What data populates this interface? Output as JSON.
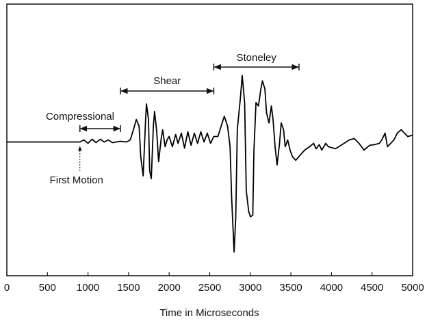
{
  "chart_data": {
    "type": "line",
    "xlabel": "Time in Microseconds",
    "xlim": [
      0,
      5000
    ],
    "xticks": [
      0,
      500,
      1000,
      1500,
      2000,
      2500,
      3000,
      3500,
      4000,
      4500,
      5000
    ],
    "ylim": [
      -200,
      200
    ],
    "color": "#000000",
    "x": [
      0,
      900,
      950,
      1000,
      1050,
      1100,
      1150,
      1200,
      1250,
      1300,
      1400,
      1475,
      1520,
      1560,
      1595,
      1630,
      1650,
      1680,
      1710,
      1720,
      1745,
      1760,
      1780,
      1805,
      1820,
      1845,
      1870,
      1900,
      1920,
      1950,
      1975,
      2000,
      2040,
      2080,
      2110,
      2150,
      2190,
      2230,
      2270,
      2310,
      2350,
      2390,
      2430,
      2470,
      2510,
      2550,
      2600,
      2640,
      2680,
      2720,
      2750,
      2770,
      2800,
      2820,
      2840,
      2880,
      2900,
      2930,
      2950,
      2980,
      3000,
      3030,
      3045,
      3070,
      3100,
      3130,
      3150,
      3180,
      3200,
      3230,
      3260,
      3280,
      3305,
      3330,
      3360,
      3380,
      3410,
      3430,
      3460,
      3490,
      3520,
      3560,
      3610,
      3670,
      3730,
      3780,
      3810,
      3850,
      3880,
      3930,
      3960,
      4050,
      4130,
      4220,
      4280,
      4340,
      4400,
      4470,
      4530,
      4590,
      4620,
      4660,
      4690,
      4730,
      4770,
      4810,
      4860,
      4900,
      4940,
      5000
    ],
    "values": [
      -3,
      -3,
      0,
      -5,
      1,
      -4,
      1,
      -3,
      0,
      -4,
      -2,
      -3,
      0,
      15,
      30,
      20,
      -25,
      -53,
      30,
      53,
      30,
      -45,
      -57,
      20,
      42,
      15,
      -32,
      0,
      15,
      -10,
      0,
      5,
      -10,
      8,
      -5,
      10,
      -12,
      12,
      -8,
      10,
      -5,
      12,
      -3,
      10,
      -5,
      5,
      5,
      20,
      35,
      20,
      -10,
      -85,
      -165,
      -115,
      15,
      65,
      95,
      55,
      -75,
      -105,
      -113,
      -111,
      -15,
      55,
      50,
      75,
      87,
      75,
      40,
      25,
      50,
      30,
      -10,
      -37,
      -5,
      25,
      15,
      -10,
      0,
      -15,
      -25,
      -30,
      -23,
      -15,
      -10,
      -5,
      -13,
      -7,
      -15,
      -5,
      -10,
      -13,
      -7,
      0,
      2,
      -5,
      -15,
      -8,
      -7,
      -5,
      0,
      10,
      -10,
      -5,
      0,
      10,
      15,
      10,
      5,
      7
    ],
    "ranges": [
      {
        "label": "Compressional",
        "x": [
          900,
          1400
        ]
      },
      {
        "label": "Shear",
        "x": [
          1400,
          2550
        ]
      },
      {
        "label": "Stoneley",
        "x": [
          2550,
          3600
        ]
      }
    ],
    "markers": [
      {
        "label": "First Motion",
        "x": 900
      }
    ]
  }
}
